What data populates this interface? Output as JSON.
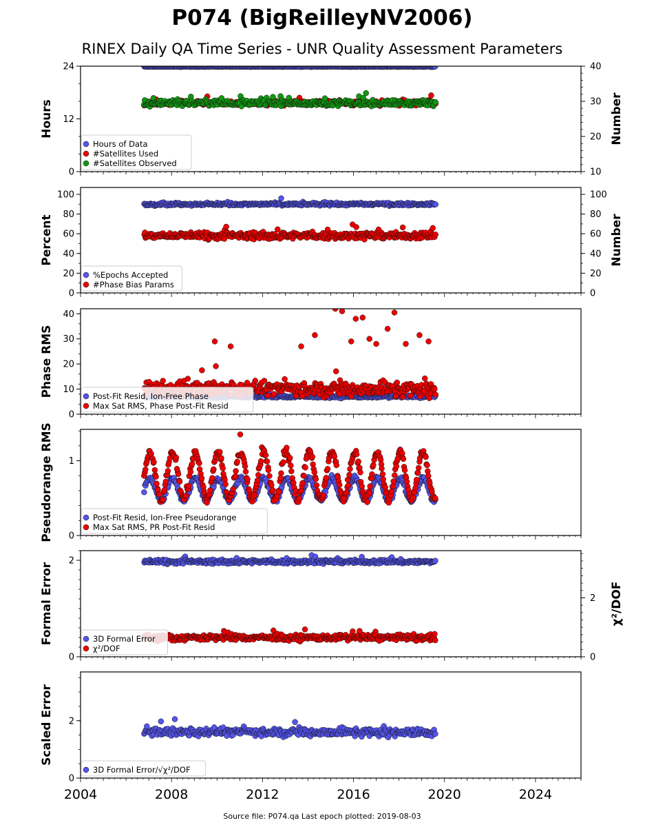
{
  "title": "P074 (BigReilleyNV2006)",
  "subtitle": "RINEX Daily QA Time Series - UNR Quality Assessment Parameters",
  "footer": "Source file: P074.qa Last epoch plotted: 2019-08-03",
  "colors": {
    "blue": "#5555ee",
    "red": "#ee0000",
    "green": "#119911",
    "navy": "#101040"
  },
  "x_axis": {
    "range": [
      2004,
      2026
    ],
    "ticks": [
      "2004",
      "2008",
      "2012",
      "2016",
      "2020",
      "2024"
    ],
    "tick_values": [
      2004,
      2008,
      2012,
      2016,
      2020,
      2024
    ]
  },
  "chart_data": [
    {
      "type": "scatter",
      "ylabel": "Hours",
      "ylabel2": "Number",
      "ylim": [
        0,
        24
      ],
      "yticks": [
        "0",
        "12",
        "24"
      ],
      "y2lim": [
        10,
        40
      ],
      "y2ticks": [
        "10",
        "20",
        "30",
        "40"
      ],
      "legend": "bottom-left",
      "series": [
        {
          "name": "Hours of Data",
          "color": "#5555ee",
          "axis": "left",
          "x_range": [
            2006.8,
            2019.6
          ],
          "level": 23.9,
          "spread": 0.1
        },
        {
          "name": "#Satellites Used",
          "color": "#ee0000",
          "axis": "right",
          "x_range": [
            2006.8,
            2019.6
          ],
          "level": 29.5,
          "spread": 1.0
        },
        {
          "name": "#Satellites Observed",
          "color": "#119911",
          "axis": "right",
          "x_range": [
            2006.8,
            2019.6
          ],
          "level": 29.5,
          "spread": 1.2
        }
      ]
    },
    {
      "type": "scatter",
      "ylabel": "Percent",
      "ylabel2": "Number",
      "ylim": [
        0,
        107
      ],
      "yticks": [
        "0",
        "20",
        "40",
        "60",
        "80",
        "100"
      ],
      "y2lim": [
        0,
        107
      ],
      "y2ticks": [
        "0",
        "20",
        "40",
        "60",
        "80",
        "100"
      ],
      "legend": "bottom-left",
      "series": [
        {
          "name": "%Epochs Accepted",
          "color": "#5555ee",
          "axis": "left",
          "x_range": [
            2006.8,
            2019.6
          ],
          "level": 90,
          "spread": 2
        },
        {
          "name": "#Phase Bias Params",
          "color": "#ee0000",
          "axis": "right",
          "x_range": [
            2006.8,
            2019.6
          ],
          "level": 58,
          "spread": 5
        }
      ]
    },
    {
      "type": "scatter",
      "ylabel": "Phase RMS",
      "ylim": [
        0,
        42
      ],
      "yticks": [
        "0",
        "10",
        "20",
        "30",
        "40"
      ],
      "legend": "bottom-left",
      "series": [
        {
          "name": "Post-Fit Resid, Ion-Free Phase",
          "color": "#5555ee",
          "axis": "left",
          "x_range": [
            2006.8,
            2019.6
          ],
          "level": 7,
          "spread": 0.8
        },
        {
          "name": "Max Sat RMS, Phase Post-Fit Resid",
          "color": "#ee0000",
          "axis": "left",
          "x_range": [
            2006.8,
            2019.6
          ],
          "level": 10,
          "spread": 4,
          "outliers": [
            [
              2009.9,
              29
            ],
            [
              2010.6,
              27
            ],
            [
              2013.7,
              27
            ],
            [
              2014.3,
              31.5
            ],
            [
              2015.2,
              42
            ],
            [
              2015.5,
              41
            ],
            [
              2015.9,
              29
            ],
            [
              2016.1,
              38
            ],
            [
              2016.4,
              38.5
            ],
            [
              2016.7,
              30
            ],
            [
              2017.0,
              28
            ],
            [
              2017.5,
              34
            ],
            [
              2017.8,
              40.5
            ],
            [
              2018.3,
              28
            ],
            [
              2018.9,
              31.5
            ],
            [
              2019.3,
              29
            ]
          ]
        }
      ]
    },
    {
      "type": "scatter",
      "ylabel": "Pseudorange RMS",
      "ylim": [
        0,
        1.42
      ],
      "yticks": [
        "0",
        "1"
      ],
      "legend": "bottom-left",
      "series": [
        {
          "name": "Post-Fit Resid, Ion-Free Pseudorange",
          "color": "#5555ee",
          "axis": "left",
          "x_range": [
            2006.8,
            2019.6
          ],
          "level": 0.62,
          "amplitude": 0.15,
          "spread": 0.05
        },
        {
          "name": "Max Sat RMS, PR Post-Fit Resid",
          "color": "#ee0000",
          "axis": "left",
          "x_range": [
            2006.8,
            2019.6
          ],
          "level": 0.8,
          "amplitude": 0.32,
          "spread": 0.08
        }
      ]
    },
    {
      "type": "scatter",
      "ylabel": "Formal Error",
      "ylabel2": "χ²/DOF",
      "ylim": [
        0,
        2.2
      ],
      "yticks": [
        "0",
        "2"
      ],
      "y2lim": [
        0,
        3.6
      ],
      "y2ticks": [
        "0",
        "2"
      ],
      "legend": "bottom-left",
      "series": [
        {
          "name": "3D Formal Error",
          "color": "#5555ee",
          "axis": "left",
          "x_range": [
            2006.8,
            2019.6
          ],
          "level": 1.97,
          "spread": 0.06
        },
        {
          "name": "χ²/DOF",
          "color": "#ee0000",
          "axis": "right",
          "x_range": [
            2006.8,
            2019.6
          ],
          "level": 0.65,
          "spread": 0.15
        }
      ]
    },
    {
      "type": "scatter",
      "ylabel": "Scaled Error",
      "ylim": [
        0,
        3.7
      ],
      "yticks": [
        "0",
        "2"
      ],
      "legend": "bottom-left",
      "series": [
        {
          "name": "3D Formal Error/√χ²/DOF",
          "color": "#5555ee",
          "axis": "left",
          "x_range": [
            2006.8,
            2019.6
          ],
          "level": 1.6,
          "spread": 0.2
        }
      ]
    }
  ]
}
